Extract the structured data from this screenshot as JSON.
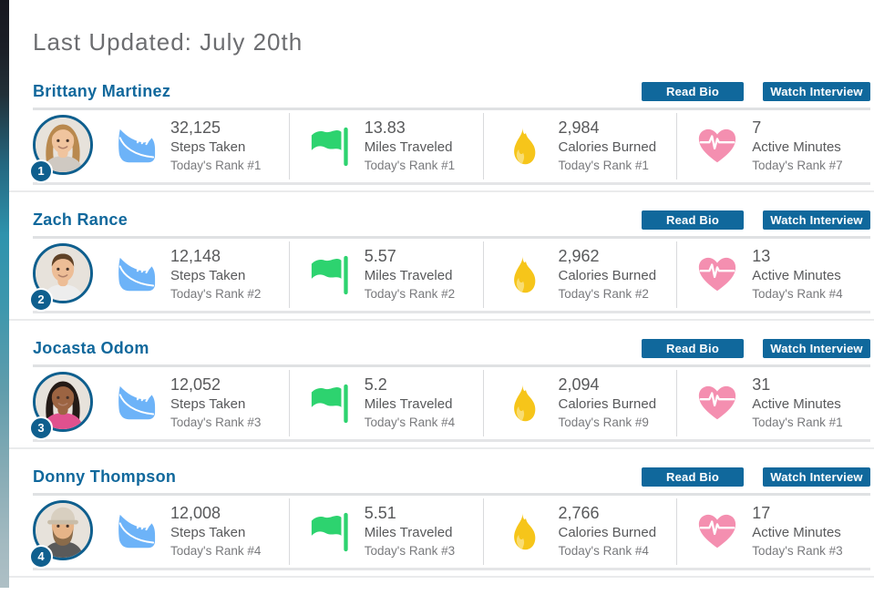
{
  "header": {
    "title": "Last Updated: July 20th"
  },
  "actions": {
    "read_bio": "Read Bio",
    "watch_interview": "Watch Interview"
  },
  "colors": {
    "accent_blue": "#10689c",
    "badge_blue": "#0f5f8e",
    "shoe_blue": "#6db3f8",
    "flag_green": "#2dd36f",
    "flame_gold": "#f6c51a",
    "heart_pink": "#f48fb0",
    "text_gray": "#58595b"
  },
  "people": [
    {
      "name": "Brittany Martinez",
      "rank": "1",
      "avatar": {
        "style": "long-hair",
        "skin": "#f0c49e",
        "hair": "#b9894f",
        "shirt": "#cfc9c2",
        "bg": "#e7e2db"
      },
      "stats": [
        {
          "icon": "shoe-icon",
          "value": "32,125",
          "label": "Steps Taken",
          "rank": "Today's Rank #1"
        },
        {
          "icon": "flag-icon",
          "value": "13.83",
          "label": "Miles Traveled",
          "rank": "Today's Rank #1"
        },
        {
          "icon": "flame-icon",
          "value": "2,984",
          "label": "Calories Burned",
          "rank": "Today's Rank #1"
        },
        {
          "icon": "heart-icon",
          "value": "7",
          "label": "Active Minutes",
          "rank": "Today's Rank #7"
        }
      ]
    },
    {
      "name": "Zach Rance",
      "rank": "2",
      "avatar": {
        "style": "short-hair",
        "skin": "#edbd96",
        "hair": "#5f4126",
        "shirt": "#ededed",
        "bg": "#e7e2db"
      },
      "stats": [
        {
          "icon": "shoe-icon",
          "value": "12,148",
          "label": "Steps Taken",
          "rank": "Today's Rank #2"
        },
        {
          "icon": "flag-icon",
          "value": "5.57",
          "label": "Miles Traveled",
          "rank": "Today's Rank #2"
        },
        {
          "icon": "flame-icon",
          "value": "2,962",
          "label": "Calories Burned",
          "rank": "Today's Rank #2"
        },
        {
          "icon": "heart-icon",
          "value": "13",
          "label": "Active Minutes",
          "rank": "Today's Rank #4"
        }
      ]
    },
    {
      "name": "Jocasta Odom",
      "rank": "3",
      "avatar": {
        "style": "long-hair",
        "skin": "#9c6442",
        "hair": "#241a16",
        "shirt": "#e0518e",
        "bg": "#e7e2db"
      },
      "stats": [
        {
          "icon": "shoe-icon",
          "value": "12,052",
          "label": "Steps Taken",
          "rank": "Today's Rank #3"
        },
        {
          "icon": "flag-icon",
          "value": "5.2",
          "label": "Miles Traveled",
          "rank": "Today's Rank #4"
        },
        {
          "icon": "flame-icon",
          "value": "2,094",
          "label": "Calories Burned",
          "rank": "Today's Rank #9"
        },
        {
          "icon": "heart-icon",
          "value": "31",
          "label": "Active Minutes",
          "rank": "Today's Rank #1"
        }
      ]
    },
    {
      "name": "Donny Thompson",
      "rank": "4",
      "avatar": {
        "style": "cap-beard",
        "skin": "#e6b488",
        "hair": "#8a6b4a",
        "shirt": "#5a5a5a",
        "bg": "#e7e2db",
        "cap": "#d8cfc0"
      },
      "stats": [
        {
          "icon": "shoe-icon",
          "value": "12,008",
          "label": "Steps Taken",
          "rank": "Today's Rank #4"
        },
        {
          "icon": "flag-icon",
          "value": "5.51",
          "label": "Miles Traveled",
          "rank": "Today's Rank #3"
        },
        {
          "icon": "flame-icon",
          "value": "2,766",
          "label": "Calories Burned",
          "rank": "Today's Rank #4"
        },
        {
          "icon": "heart-icon",
          "value": "17",
          "label": "Active Minutes",
          "rank": "Today's Rank #3"
        }
      ]
    }
  ]
}
